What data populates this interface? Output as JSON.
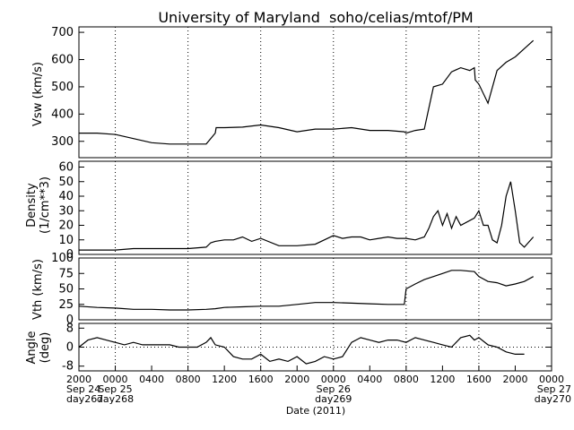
{
  "title": "University of Maryland  soho/celias/mtof/PM",
  "xlabel": "Date (2011)",
  "x_ticks": [
    "2000",
    "0000",
    "0400",
    "0800",
    "1200",
    "1600",
    "2000",
    "0000",
    "0400",
    "0800",
    "1200",
    "1600",
    "2000",
    "0000"
  ],
  "day_labels": [
    {
      "date": "Sep 24",
      "doy": "day267",
      "tick_index": 0
    },
    {
      "date": "Sep 25",
      "doy": "day268",
      "tick_index": 1
    },
    {
      "date": "Sep 26",
      "doy": "day269",
      "tick_index": 7
    },
    {
      "date": "Sep 27",
      "doy": "day270",
      "tick_index": 13
    }
  ],
  "chart_data": [
    {
      "type": "line",
      "id": "vsw",
      "ylabel": "Vsw (km/s)",
      "ylim": [
        240,
        720
      ],
      "yticks": [
        300,
        400,
        500,
        600,
        700
      ],
      "grid": "vertical dotted at midnight and 0800/1600",
      "series": [
        {
          "x": [
            0,
            2,
            4,
            6,
            8,
            10,
            12,
            14,
            15,
            15.1,
            16,
            18,
            20,
            22,
            24,
            26,
            28,
            30,
            32,
            34,
            35.8,
            36,
            37,
            38,
            39,
            40,
            41,
            42,
            43,
            43.5,
            43.6,
            44,
            45,
            46,
            47,
            48,
            49,
            50
          ],
          "y": [
            330,
            330,
            325,
            310,
            295,
            290,
            290,
            290,
            330,
            350,
            350,
            352,
            360,
            350,
            335,
            345,
            345,
            350,
            340,
            340,
            335,
            330,
            340,
            345,
            500,
            510,
            555,
            570,
            560,
            570,
            525,
            510,
            440,
            560,
            590,
            610,
            640,
            670
          ]
        }
      ]
    },
    {
      "type": "line",
      "id": "density",
      "ylabel": "Density (1/cm**3)",
      "ylim": [
        0,
        64
      ],
      "yticks": [
        0,
        10,
        20,
        30,
        40,
        50,
        60
      ],
      "grid": "vertical dotted at midnight and 0800/1600",
      "series": [
        {
          "x": [
            0,
            2,
            4,
            6,
            8,
            10,
            12,
            14,
            14.5,
            15,
            16,
            17,
            18,
            19,
            20,
            22,
            24,
            26,
            27,
            28,
            29,
            30,
            31,
            32,
            33,
            34,
            35,
            36,
            37,
            38,
            38.5,
            39,
            39.5,
            40,
            40.5,
            41,
            41.5,
            42,
            43.5,
            44,
            44.5,
            45,
            45.5,
            46,
            46.5,
            47,
            47.5,
            48,
            48.5,
            49,
            50
          ],
          "y": [
            3,
            3,
            3,
            4,
            4,
            4,
            4,
            5,
            8,
            9,
            10,
            10,
            12,
            9,
            11,
            6,
            6,
            7,
            10,
            13,
            11,
            12,
            12,
            10,
            11,
            12,
            11,
            11,
            10,
            12,
            18,
            26,
            30,
            20,
            28,
            18,
            26,
            20,
            25,
            30,
            20,
            20,
            10,
            8,
            20,
            40,
            50,
            30,
            8,
            5,
            12
          ]
        }
      ]
    },
    {
      "type": "line",
      "id": "vth",
      "ylabel": "Vth (km/s)",
      "ylim": [
        0,
        100
      ],
      "yticks": [
        0,
        25,
        50,
        75,
        100
      ],
      "grid": "vertical dotted at midnight and 0800/1600",
      "series": [
        {
          "x": [
            0,
            2,
            4,
            6,
            8,
            10,
            12,
            14,
            15,
            16,
            18,
            20,
            22,
            24,
            26,
            28,
            30,
            32,
            34,
            35.8,
            36,
            37,
            38,
            39,
            40,
            41,
            42,
            43.5,
            44,
            45,
            46,
            47,
            48,
            49,
            50
          ],
          "y": [
            22,
            20,
            19,
            17,
            17,
            16,
            16,
            17,
            18,
            20,
            21,
            22,
            22,
            25,
            28,
            28,
            27,
            26,
            25,
            25,
            50,
            58,
            65,
            70,
            75,
            80,
            80,
            78,
            70,
            62,
            60,
            55,
            58,
            62,
            70
          ]
        }
      ]
    },
    {
      "type": "line",
      "id": "angle",
      "ylabel": "Angle (deg)",
      "ylim": [
        -10,
        10
      ],
      "yticks": [
        -8,
        0,
        8
      ],
      "grid": "vertical dotted at midnight and 0800/1600; horizontal dotted at 0",
      "series": [
        {
          "x": [
            0,
            1,
            2,
            3,
            4,
            5,
            6,
            7,
            8,
            9,
            10,
            11,
            12,
            13,
            14,
            14.5,
            15,
            16,
            17,
            18,
            19,
            20,
            21,
            22,
            23,
            24,
            25,
            26,
            27,
            28,
            29,
            30,
            31,
            32,
            33,
            34,
            35,
            36,
            37,
            38,
            39,
            40,
            41,
            42,
            43,
            43.5,
            44,
            45,
            46,
            47,
            48,
            49
          ],
          "y": [
            0,
            3,
            4,
            3,
            2,
            1,
            2,
            1,
            1,
            1,
            1,
            0,
            0,
            0,
            2,
            4,
            1,
            0,
            -4,
            -5,
            -5,
            -3,
            -6,
            -5,
            -6,
            -4,
            -7,
            -6,
            -4,
            -5,
            -4,
            2,
            4,
            3,
            2,
            3,
            3,
            2,
            4,
            3,
            2,
            1,
            0,
            4,
            5,
            3,
            4,
            1,
            0,
            -2,
            -3,
            -3
          ]
        }
      ]
    }
  ]
}
